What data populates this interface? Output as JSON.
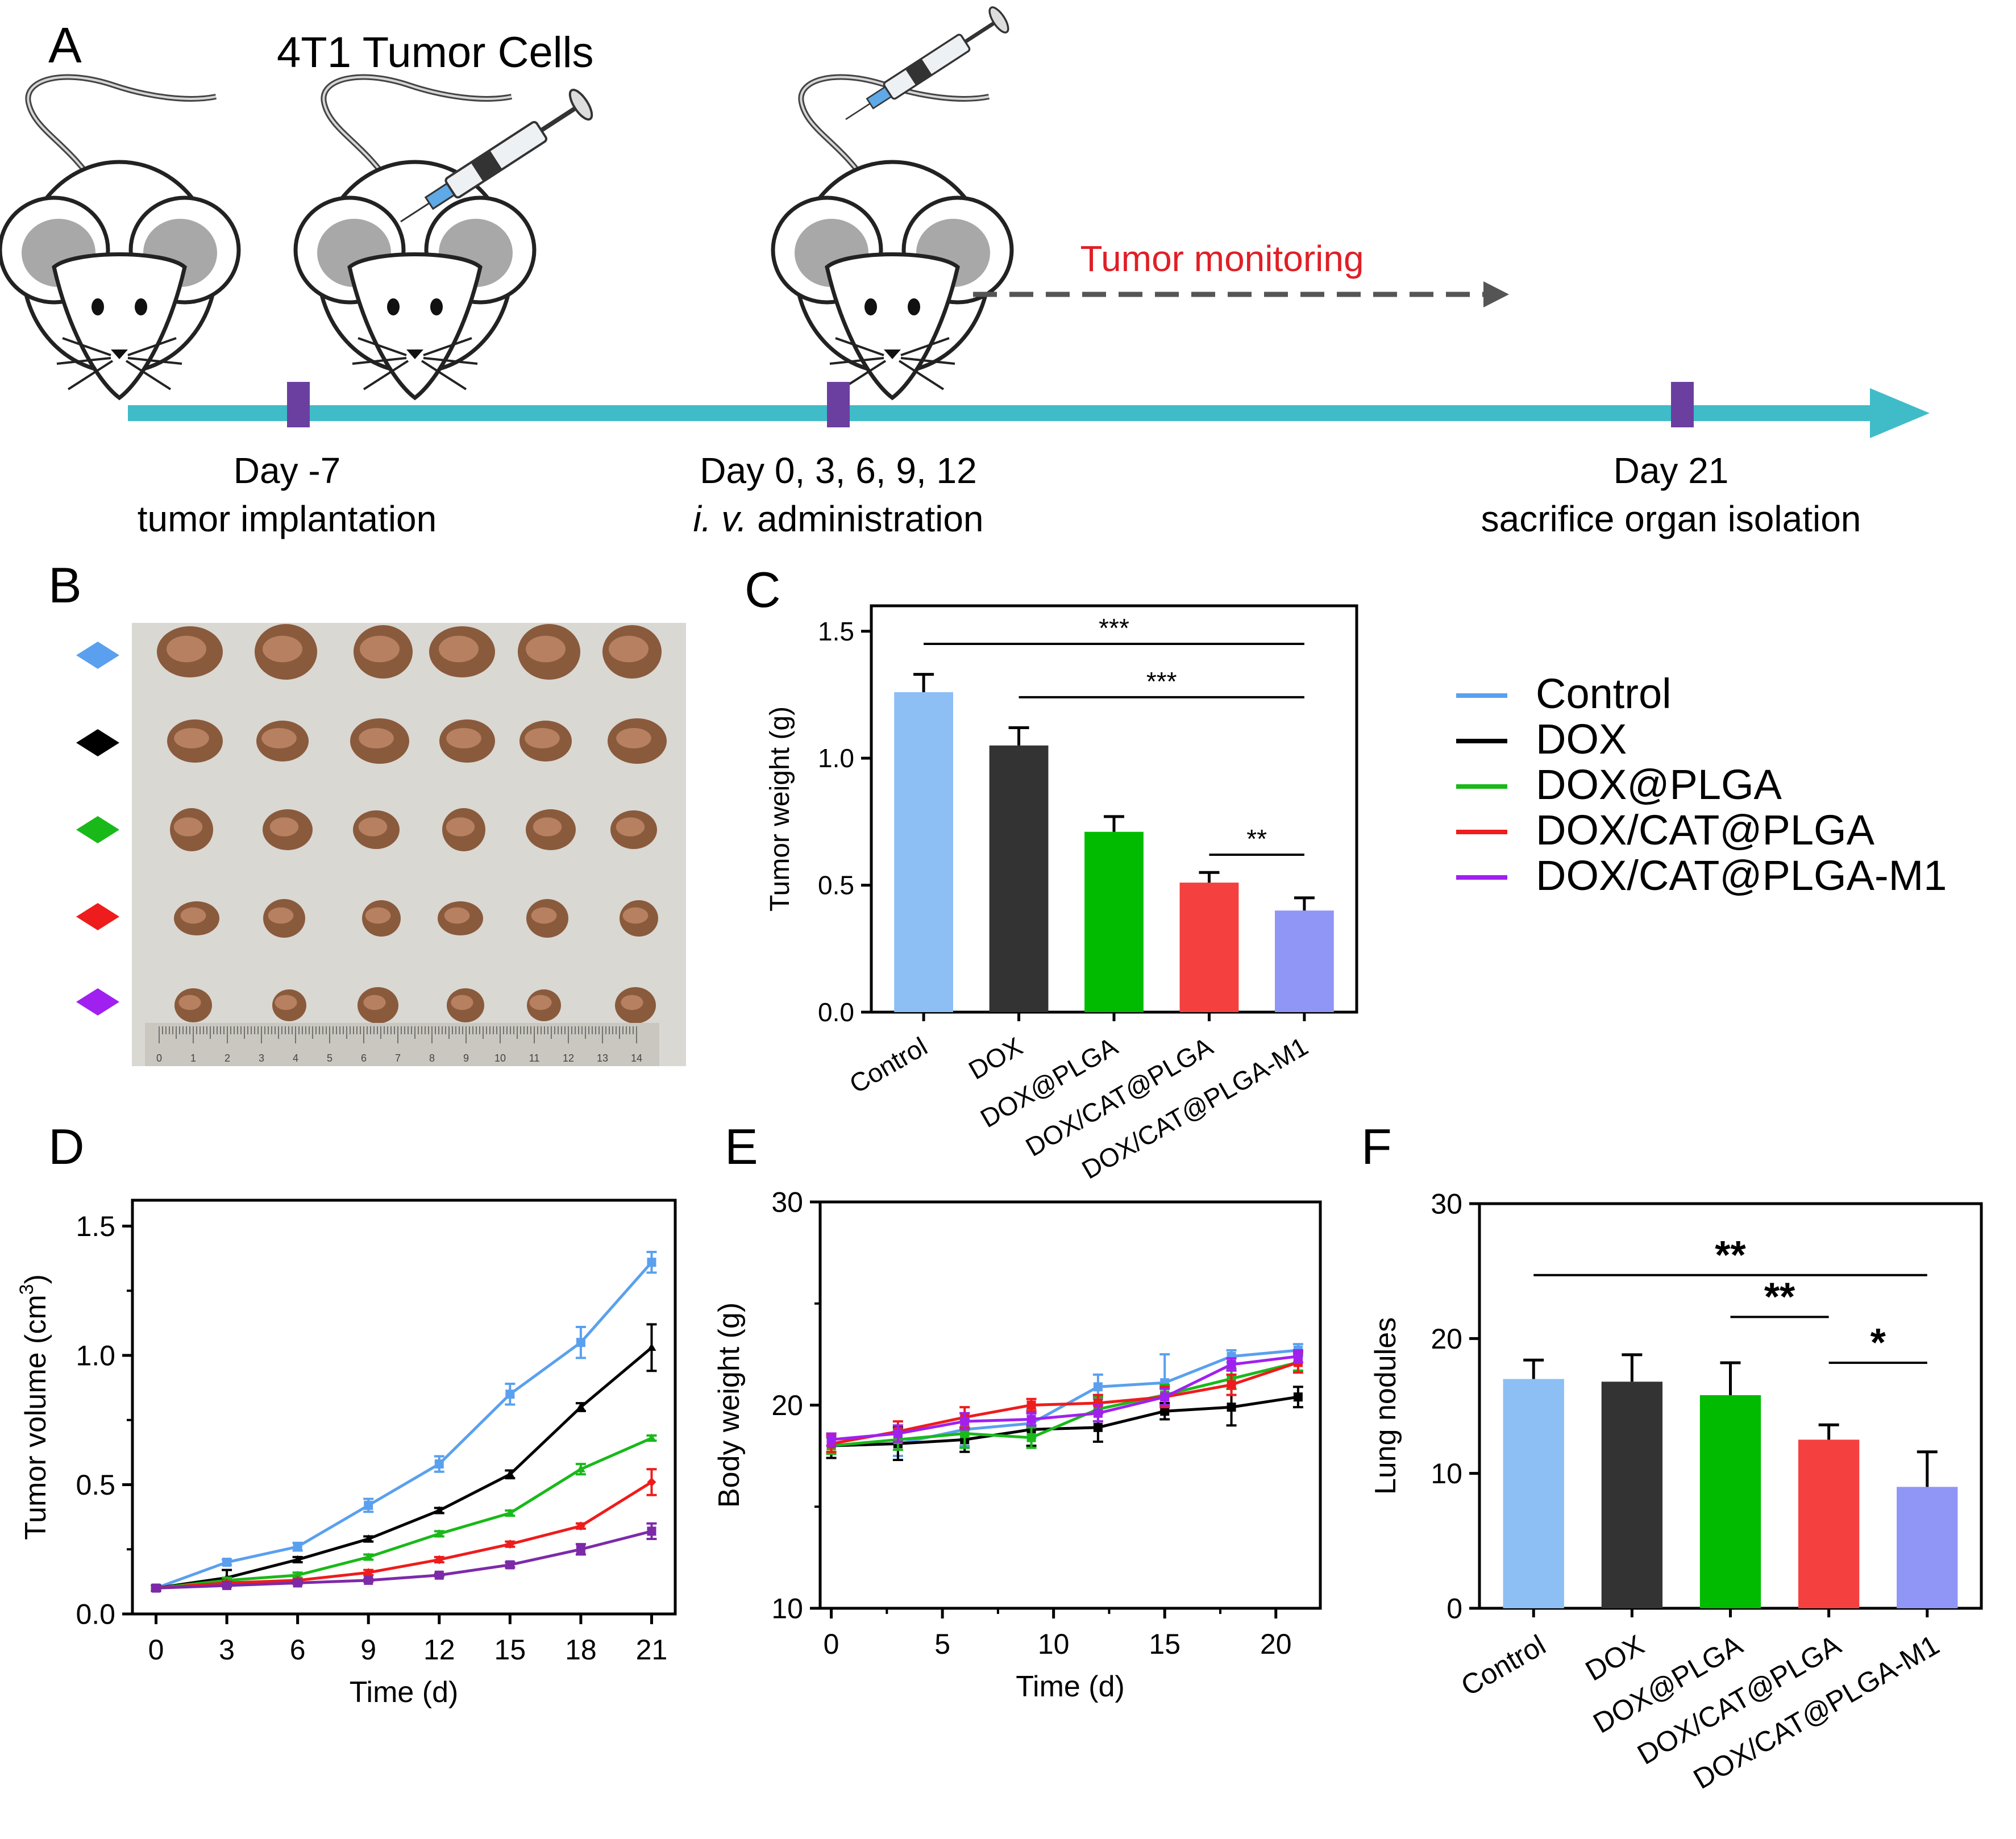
{
  "panel_a": {
    "letter": "A",
    "title": "4T1 Tumor Cells",
    "monitoring": "Tumor monitoring",
    "steps": [
      {
        "line1": "Day -7",
        "line2": "tumor implantation"
      },
      {
        "line1": "Day 0, 3,  6, 9, 12",
        "line2_italic": "i. v.",
        "line2": " administration"
      },
      {
        "line1": "Day 21",
        "line2": "sacrifice organ isolation"
      }
    ],
    "colors": {
      "timeline": "#40bcc8",
      "marker": "#6b3fa0",
      "monitor_text": "#e01f26",
      "arrow": "#555555"
    }
  },
  "panel_b": {
    "letter": "B",
    "group_markers": [
      "#5aa0ee",
      "#000000",
      "#19b919",
      "#ee1c1c",
      "#a020f0"
    ],
    "ruler_numbers": [
      "0",
      "1",
      "2",
      "3",
      "4",
      "5",
      "6",
      "7",
      "8",
      "9",
      "10",
      "11",
      "12",
      "13",
      "14"
    ]
  },
  "legend": {
    "items": [
      {
        "label": "Control",
        "color": "#5aa0ee"
      },
      {
        "label": "DOX",
        "color": "#000000"
      },
      {
        "label": "DOX@PLGA",
        "color": "#19b919"
      },
      {
        "label": "DOX/CAT@PLGA",
        "color": "#ee1c1c"
      },
      {
        "label": "DOX/CAT@PLGA-M1",
        "color": "#a020f0"
      }
    ]
  },
  "chart_data": [
    {
      "id": "C",
      "type": "bar",
      "letter": "C",
      "ylabel": "Tumor weight (g)",
      "ylim": [
        0,
        1.6
      ],
      "yticks": [
        "0.0",
        "0.5",
        "1.0",
        "1.5"
      ],
      "categories": [
        "Control",
        "DOX",
        "DOX@PLGA",
        "DOX/CAT@PLGA",
        "DOX/CAT@PLGA-M1"
      ],
      "values": [
        1.26,
        1.05,
        0.71,
        0.51,
        0.4
      ],
      "errors": [
        0.07,
        0.07,
        0.06,
        0.04,
        0.05
      ],
      "colors": [
        "#8dbff5",
        "#333333",
        "#00bb00",
        "#f54040",
        "#8f96f5"
      ],
      "significance": [
        {
          "from": 0,
          "to": 4,
          "label": "***",
          "y": 1.45
        },
        {
          "from": 1,
          "to": 4,
          "label": "***",
          "y": 1.24
        },
        {
          "from": 3,
          "to": 4,
          "label": "**",
          "y": 0.62
        }
      ]
    },
    {
      "id": "D",
      "type": "line",
      "letter": "D",
      "xlabel": "Time (d)",
      "ylabel": "Tumor volume (cm",
      "ylabel_sup": "3",
      "ylabel_end": ")",
      "ylim": [
        0,
        1.6
      ],
      "xlim": [
        -1,
        22
      ],
      "yticks": [
        "0.0",
        "0.5",
        "1.0",
        "1.5"
      ],
      "xticks": [
        "0",
        "3",
        "6",
        "9",
        "12",
        "15",
        "18",
        "21"
      ],
      "x": [
        0,
        3,
        6,
        9,
        12,
        15,
        18,
        21
      ],
      "series": [
        {
          "name": "Control",
          "color": "#5aa0ee",
          "marker": "square",
          "values": [
            0.1,
            0.2,
            0.26,
            0.42,
            0.58,
            0.85,
            1.05,
            1.36
          ],
          "errors": [
            0.01,
            0.01,
            0.015,
            0.025,
            0.03,
            0.04,
            0.06,
            0.04
          ]
        },
        {
          "name": "DOX",
          "color": "#000000",
          "marker": "triangle",
          "values": [
            0.1,
            0.14,
            0.21,
            0.29,
            0.4,
            0.54,
            0.8,
            1.03
          ],
          "errors": [
            0.01,
            0.03,
            0.01,
            0.01,
            0.01,
            0.015,
            0.015,
            0.09
          ]
        },
        {
          "name": "DOX@PLGA",
          "color": "#19b919",
          "marker": "triangle",
          "values": [
            0.1,
            0.13,
            0.15,
            0.22,
            0.31,
            0.39,
            0.56,
            0.68
          ],
          "errors": [
            0.005,
            0.01,
            0.01,
            0.01,
            0.01,
            0.01,
            0.02,
            0.01
          ]
        },
        {
          "name": "DOX/CAT@PLGA",
          "color": "#ee1c1c",
          "marker": "diamond",
          "values": [
            0.1,
            0.12,
            0.13,
            0.16,
            0.21,
            0.27,
            0.34,
            0.51
          ],
          "errors": [
            0.005,
            0.005,
            0.005,
            0.01,
            0.01,
            0.01,
            0.01,
            0.05
          ]
        },
        {
          "name": "DOX/CAT@PLGA-M1",
          "color": "#7d2aa8",
          "marker": "square",
          "values": [
            0.1,
            0.11,
            0.12,
            0.13,
            0.15,
            0.19,
            0.25,
            0.32
          ],
          "errors": [
            0.005,
            0.005,
            0.005,
            0.005,
            0.005,
            0.01,
            0.02,
            0.03
          ]
        }
      ]
    },
    {
      "id": "E",
      "type": "line",
      "letter": "E",
      "xlabel": "Time (d)",
      "ylabel": "Body weight (g)",
      "ylim": [
        10,
        30
      ],
      "xlim": [
        -0.5,
        22
      ],
      "yticks": [
        "10",
        "20",
        "30"
      ],
      "xticks": [
        "0",
        "5",
        "10",
        "15",
        "20"
      ],
      "x": [
        0,
        3,
        6,
        9,
        12,
        15,
        18,
        21
      ],
      "series": [
        {
          "name": "Control",
          "color": "#5aa0ee",
          "values": [
            18.0,
            18.1,
            18.8,
            19.1,
            20.9,
            21.1,
            22.4,
            22.7
          ],
          "errors": [
            0.4,
            0.6,
            0.8,
            0.7,
            0.6,
            1.4,
            0.3,
            0.3
          ]
        },
        {
          "name": "DOX",
          "color": "#000000",
          "values": [
            18.0,
            18.1,
            18.3,
            18.8,
            18.9,
            19.7,
            19.9,
            20.4
          ],
          "errors": [
            0.6,
            0.8,
            0.6,
            0.8,
            0.7,
            0.4,
            0.9,
            0.5
          ]
        },
        {
          "name": "DOX@PLGA",
          "color": "#19b919",
          "values": [
            18.0,
            18.3,
            18.6,
            18.4,
            19.8,
            20.5,
            21.3,
            22.1
          ],
          "errors": [
            0.4,
            0.5,
            0.7,
            0.5,
            0.6,
            0.5,
            0.5,
            0.4
          ]
        },
        {
          "name": "DOX/CAT@PLGA",
          "color": "#ee1c1c",
          "values": [
            18.1,
            18.7,
            19.4,
            20.0,
            20.1,
            20.4,
            21.0,
            22.1
          ],
          "errors": [
            0.4,
            0.5,
            0.5,
            0.3,
            0.4,
            0.5,
            0.5,
            0.5
          ]
        },
        {
          "name": "DOX/CAT@PLGA-M1",
          "color": "#a020f0",
          "values": [
            18.3,
            18.6,
            19.2,
            19.3,
            19.6,
            20.4,
            22.0,
            22.4
          ],
          "errors": [
            0.3,
            0.4,
            0.4,
            0.3,
            0.4,
            0.4,
            0.3,
            0.3
          ]
        }
      ]
    },
    {
      "id": "F",
      "type": "bar",
      "letter": "F",
      "ylabel": "Lung nodules",
      "ylim": [
        0,
        30
      ],
      "yticks": [
        "0",
        "10",
        "20",
        "30"
      ],
      "categories": [
        "Control",
        "DOX",
        "DOX@PLGA",
        "DOX/CAT@PLGA",
        "DOX/CAT@PLGA-M1"
      ],
      "values": [
        17.0,
        16.8,
        15.8,
        12.5,
        9.0
      ],
      "errors": [
        1.4,
        2.0,
        2.4,
        1.1,
        2.6
      ],
      "colors": [
        "#8dbff5",
        "#333333",
        "#00bb00",
        "#f54040",
        "#8f96f5"
      ],
      "significance": [
        {
          "from": 0,
          "to": 4,
          "label": "**",
          "y": 24.7
        },
        {
          "from": 2,
          "to": 3,
          "label": "**",
          "y": 21.6
        },
        {
          "from": 3,
          "to": 4,
          "label": "*",
          "y": 18.2
        }
      ]
    }
  ]
}
